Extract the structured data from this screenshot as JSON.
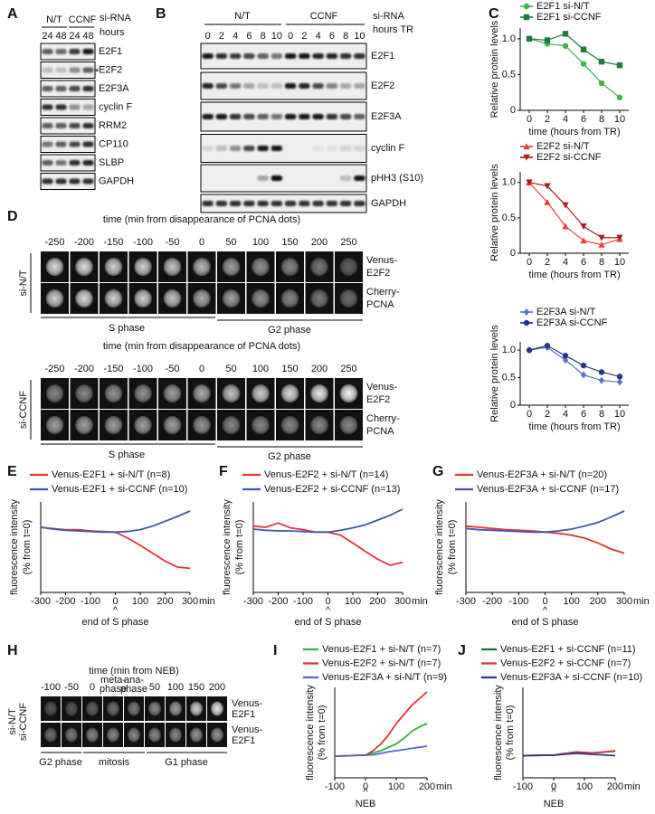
{
  "panels": {
    "A": {
      "letter": "A",
      "groups": [
        "N/T",
        "CCNF"
      ],
      "lanes": [
        "24",
        "48",
        "24",
        "48"
      ],
      "header": [
        "si-RNA",
        "hours"
      ],
      "note": "*",
      "rows": [
        "E2F1",
        "E2F2",
        "E2F3A",
        "cyclin F",
        "RRM2",
        "CP110",
        "SLBP",
        "GAPDH"
      ]
    },
    "B": {
      "letter": "B",
      "groups": [
        "N/T",
        "CCNF"
      ],
      "lanes": [
        "0",
        "2",
        "4",
        "6",
        "8",
        "10",
        "0",
        "2",
        "4",
        "6",
        "8",
        "10"
      ],
      "header": [
        "si-RNA",
        "hours TR"
      ],
      "rows": [
        "E2F1",
        "E2F2",
        "E2F3A",
        "cyclin F",
        "pHH3 (S10)",
        "GAPDH"
      ]
    },
    "C": {
      "letter": "C"
    },
    "D": {
      "letter": "D",
      "rows": [
        {
          "label": "si-N/T",
          "title": "time (min from disappearance of PCNA dots)",
          "times": [
            -250,
            -200,
            -150,
            -100,
            -50,
            0,
            50,
            100,
            150,
            200,
            250
          ],
          "channels": [
            [
              "Venus-",
              "E2F2"
            ],
            [
              "Cherry-",
              "PCNA"
            ]
          ],
          "phases": [
            "S phase",
            "G2 phase"
          ]
        },
        {
          "label": "si-CCNF",
          "title": "time (min from disappearance of PCNA dots)",
          "times": [
            -250,
            -200,
            -150,
            -100,
            -50,
            0,
            50,
            100,
            150,
            200,
            250
          ],
          "channels": [
            [
              "Venus-",
              "E2F2"
            ],
            [
              "Cherry-",
              "PCNA"
            ]
          ],
          "phases": [
            "S phase",
            "G2 phase"
          ]
        }
      ]
    },
    "H": {
      "letter": "H",
      "title": "time (min from NEB)",
      "times": [
        -100,
        -50,
        0,
        [
          "meta-",
          "phase"
        ],
        [
          "ana-",
          "phase"
        ],
        50,
        100,
        150,
        200
      ],
      "rows": [
        {
          "label": "si-N/T",
          "channel": [
            "Venus-",
            "E2F1"
          ]
        },
        {
          "label": "si-CCNF",
          "channel": [
            "Venus-",
            "E2F1"
          ]
        }
      ],
      "phases": [
        "G2 phase",
        "mitosis",
        "G1 phase"
      ]
    }
  },
  "chart_data": [
    {
      "type": "line",
      "ylabel": "Relative protein levels",
      "xlabel": "time (hours from TR)",
      "x": [
        0,
        2,
        4,
        6,
        8,
        10
      ],
      "xlim": [
        -1,
        11
      ],
      "xticks": [
        0,
        2,
        4,
        6,
        8,
        10
      ],
      "ylim": [
        0,
        1.15
      ],
      "yticks": [
        0,
        0.5,
        {
          "value": 1,
          "label": "1.0"
        }
      ],
      "series": [
        {
          "name": "E2F1 si-N/T",
          "color": "#3cb54a",
          "marker": "circle",
          "values": [
            1.0,
            0.93,
            0.9,
            0.65,
            0.38,
            0.18
          ]
        },
        {
          "name": "E2F1 si-CCNF",
          "color": "#1d7a3a",
          "marker": "square",
          "values": [
            1.0,
            0.98,
            1.07,
            0.85,
            0.68,
            0.63
          ]
        }
      ]
    },
    {
      "type": "line",
      "ylabel": "Relative protein levels",
      "xlabel": "time (hours from TR)",
      "x": [
        0,
        2,
        4,
        6,
        8,
        10
      ],
      "xlim": [
        -1,
        11
      ],
      "xticks": [
        0,
        2,
        4,
        6,
        8,
        10
      ],
      "ylim": [
        0,
        1.15
      ],
      "yticks": [
        0,
        0.5,
        {
          "value": 1,
          "label": "1.0"
        }
      ],
      "series": [
        {
          "name": "E2F2 si-N/T",
          "color": "#e8433b",
          "marker": "triangle",
          "values": [
            1.0,
            0.72,
            0.38,
            0.18,
            0.12,
            0.2
          ]
        },
        {
          "name": "E2F2 si-CCNF",
          "color": "#a8201f",
          "marker": "triangle-down",
          "values": [
            1.0,
            0.95,
            0.68,
            0.38,
            0.22,
            0.22
          ]
        }
      ]
    },
    {
      "type": "line",
      "ylabel": "Relative protein levels",
      "xlabel": "time (hours from TR)",
      "x": [
        0,
        2,
        4,
        6,
        8,
        10
      ],
      "xlim": [
        -1,
        11
      ],
      "xticks": [
        0,
        2,
        4,
        6,
        8,
        10
      ],
      "ylim": [
        0,
        1.15
      ],
      "yticks": [
        0,
        0.5,
        {
          "value": 1,
          "label": "1.0"
        }
      ],
      "series": [
        {
          "name": "E2F3A si-N/T",
          "color": "#5a72c6",
          "marker": "diamond",
          "values": [
            1.0,
            1.05,
            0.82,
            0.55,
            0.45,
            0.42
          ]
        },
        {
          "name": "E2F3A si-CCNF",
          "color": "#27348a",
          "marker": "circle",
          "values": [
            1.0,
            1.08,
            0.9,
            0.72,
            0.6,
            0.52
          ]
        }
      ]
    },
    {
      "type": "line",
      "panel": "E",
      "ylabel": [
        "fluorescence intensity",
        "(% from t=0)"
      ],
      "xlabel": "end of S phase",
      "annotation": "^",
      "x_unit": "min",
      "x": [
        -300,
        -250,
        -200,
        -150,
        -100,
        -50,
        0,
        50,
        100,
        150,
        200,
        250,
        300
      ],
      "xlim": [
        -300,
        300
      ],
      "xticks": [
        -300,
        -200,
        -100,
        0,
        100,
        200,
        300
      ],
      "ylim": [
        0,
        150
      ],
      "series": [
        {
          "name": "Venus-E2F1 + si-N/T (n=8)",
          "color": "#e3342f",
          "values": [
            108,
            106,
            104,
            104,
            102,
            101,
            100,
            90,
            78,
            65,
            52,
            42,
            40
          ]
        },
        {
          "name": "Venus-E2F1 + si-CCNF (n=10)",
          "color": "#4256b0",
          "values": [
            108,
            105,
            103,
            102,
            101,
            100,
            100,
            101,
            104,
            110,
            118,
            126,
            135
          ]
        }
      ]
    },
    {
      "type": "line",
      "panel": "F",
      "ylabel": [
        "fluorescence intensity",
        "(% from t=0)"
      ],
      "xlabel": "end of S phase",
      "annotation": "^",
      "x_unit": "min",
      "x": [
        -300,
        -250,
        -200,
        -150,
        -100,
        -50,
        0,
        50,
        100,
        150,
        200,
        250,
        300
      ],
      "xlim": [
        -300,
        300
      ],
      "xticks": [
        -300,
        -200,
        -100,
        0,
        100,
        200,
        300
      ],
      "ylim": [
        0,
        150
      ],
      "series": [
        {
          "name": "Venus-E2F2 + si-N/T (n=14)",
          "color": "#e3342f",
          "values": [
            110,
            108,
            115,
            107,
            104,
            100,
            100,
            95,
            82,
            68,
            55,
            45,
            50
          ]
        },
        {
          "name": "Venus-E2F2 + si-CCNF (n=13)",
          "color": "#4256b0",
          "values": [
            105,
            103,
            102,
            102,
            101,
            100,
            100,
            103,
            107,
            112,
            120,
            128,
            138
          ]
        }
      ]
    },
    {
      "type": "line",
      "panel": "G",
      "ylabel": [
        "fluorescence intensity",
        "(% from t=0)"
      ],
      "xlabel": "end of S phase",
      "annotation": "^",
      "x_unit": "min",
      "x": [
        -300,
        -250,
        -200,
        -150,
        -100,
        -50,
        0,
        50,
        100,
        150,
        200,
        250,
        300
      ],
      "xlim": [
        -300,
        300
      ],
      "xticks": [
        -300,
        -200,
        -100,
        0,
        100,
        200,
        300
      ],
      "ylim": [
        0,
        150
      ],
      "series": [
        {
          "name": "Venus-E2F3A + si-N/T (n=20)",
          "color": "#e3342f",
          "values": [
            110,
            108,
            106,
            104,
            103,
            102,
            100,
            98,
            95,
            90,
            82,
            72,
            65
          ]
        },
        {
          "name": "Venus-E2F3A + si-CCNF (n=17)",
          "color": "#4256b0",
          "values": [
            106,
            104,
            103,
            102,
            101,
            100,
            100,
            102,
            105,
            110,
            116,
            125,
            135
          ]
        }
      ]
    },
    {
      "type": "line",
      "panel": "I",
      "ylabel": [
        "fluorescence intensity",
        "(% from t=0)"
      ],
      "xlabel": "NEB",
      "annotation": "^",
      "x_unit": "min",
      "x": [
        -100,
        -75,
        -50,
        -25,
        0,
        25,
        50,
        75,
        100,
        125,
        150,
        175,
        200
      ],
      "xlim": [
        -100,
        200
      ],
      "xticks": [
        -100,
        0,
        100,
        200
      ],
      "ylim": [
        0,
        400
      ],
      "series": [
        {
          "name": "Venus-E2F1 + si-N/T (n=7)",
          "color": "#35b043",
          "values": [
            95,
            96,
            98,
            100,
            100,
            110,
            120,
            135,
            150,
            175,
            205,
            225,
            240
          ]
        },
        {
          "name": "Venus-E2F2 + si-N/T (n=7)",
          "color": "#e3342f",
          "values": [
            95,
            97,
            98,
            100,
            100,
            120,
            150,
            190,
            240,
            280,
            320,
            350,
            380
          ]
        },
        {
          "name": "Venus-E2F3A + si-N/T (n=9)",
          "color": "#5468c0",
          "values": [
            96,
            97,
            98,
            99,
            100,
            102,
            108,
            115,
            120,
            125,
            130,
            135,
            140
          ]
        }
      ]
    },
    {
      "type": "line",
      "panel": "J",
      "ylabel": [
        "fluorescence intensity",
        "(% from t=0)"
      ],
      "xlabel": "NEB",
      "annotation": "^",
      "x_unit": "min",
      "x": [
        -100,
        -75,
        -50,
        -25,
        0,
        25,
        50,
        75,
        100,
        125,
        150,
        175,
        200
      ],
      "xlim": [
        -100,
        200
      ],
      "xticks": [
        -100,
        0,
        100,
        200
      ],
      "ylim": [
        0,
        400
      ],
      "series": [
        {
          "name": "Venus-E2F1 + si-CCNF (n=11)",
          "color": "#1f6b3a",
          "values": [
            98,
            99,
            99,
            100,
            100,
            104,
            108,
            110,
            112,
            110,
            112,
            115,
            118
          ]
        },
        {
          "name": "Venus-E2F2 + si-CCNF (n=7)",
          "color": "#d8332d",
          "values": [
            97,
            98,
            99,
            100,
            100,
            106,
            110,
            115,
            112,
            110,
            113,
            116,
            120
          ]
        },
        {
          "name": "Venus-E2F3A + si-CCNF (n=10)",
          "color": "#2b3a8c",
          "values": [
            98,
            99,
            100,
            100,
            100,
            103,
            106,
            108,
            106,
            104,
            102,
            100,
            98
          ]
        }
      ]
    }
  ]
}
